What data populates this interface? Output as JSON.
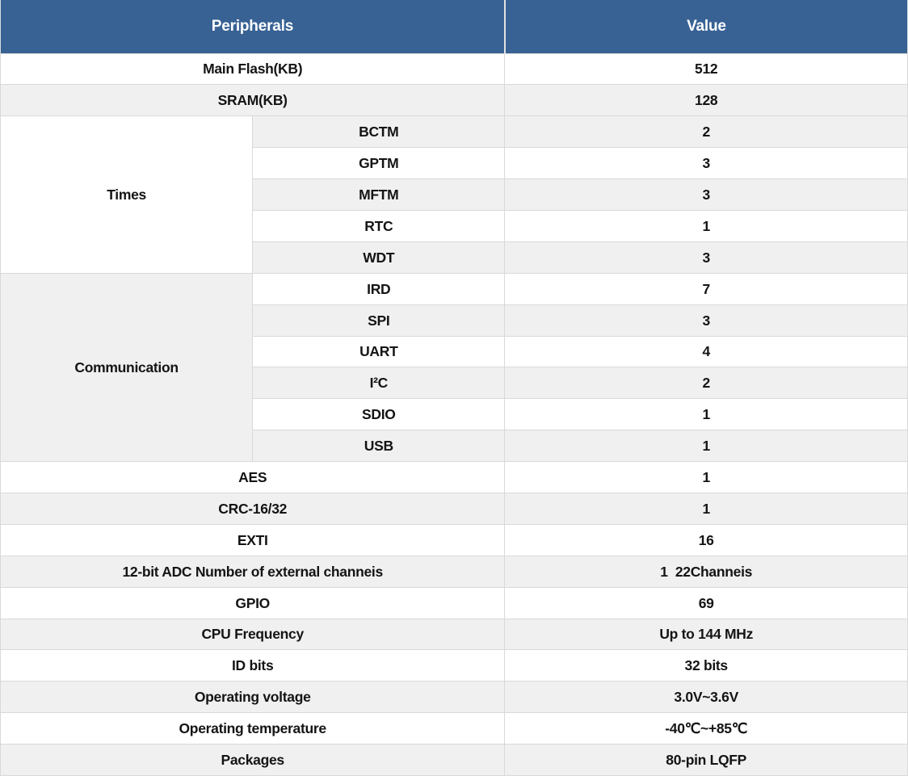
{
  "theme": {
    "header_bg": "#386294",
    "header_text": "#ffffff",
    "row_bg_white": "#ffffff",
    "row_bg_gray": "#f0f0f0",
    "border_color": "#d9d9d9",
    "header_divider": "#e3e3e3",
    "text_color": "#141414"
  },
  "table": {
    "header": {
      "peripherals": "Peripherals",
      "value": "Value"
    },
    "rows": [
      {
        "peripheral": "Main Flash(KB)",
        "value": "512"
      },
      {
        "peripheral": "SRAM(KB)",
        "value": "128"
      },
      {
        "category": "Times",
        "category_rowspan": 5,
        "peripheral": "BCTM",
        "value": "2"
      },
      {
        "peripheral": "GPTM",
        "value": "3"
      },
      {
        "peripheral": "MFTM",
        "value": "3"
      },
      {
        "peripheral": "RTC",
        "value": "1"
      },
      {
        "peripheral": "WDT",
        "value": "3"
      },
      {
        "category": "Communication",
        "category_rowspan": 6,
        "peripheral": "IRD",
        "value": "7"
      },
      {
        "peripheral": "SPI",
        "value": "3"
      },
      {
        "peripheral": "UART",
        "value": "4"
      },
      {
        "peripheral": "I²C",
        "value": "2"
      },
      {
        "peripheral": "SDIO",
        "value": "1"
      },
      {
        "peripheral": "USB",
        "value": "1"
      },
      {
        "peripheral": "AES",
        "value": "1"
      },
      {
        "peripheral": "CRC-16/32",
        "value": "1"
      },
      {
        "peripheral": "EXTI",
        "value": "16"
      },
      {
        "peripheral": "12-bit ADC Number of external channeis",
        "value": "1  22Channeis"
      },
      {
        "peripheral": "GPIO",
        "value": "69"
      },
      {
        "peripheral": "CPU Frequency",
        "value": "Up to 144 MHz"
      },
      {
        "peripheral": "ID bits",
        "value": "32 bits"
      },
      {
        "peripheral": "Operating voltage",
        "value": "3.0V~3.6V"
      },
      {
        "peripheral": "Operating temperature",
        "value": "-40℃~+85℃"
      },
      {
        "peripheral": "Packages",
        "value": "80-pin LQFP"
      }
    ]
  }
}
